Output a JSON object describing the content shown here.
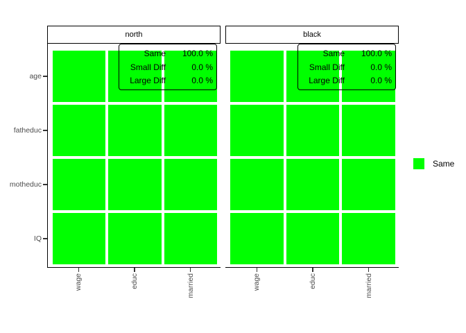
{
  "colors": {
    "tile": "#00FF00",
    "axis_text": "#4D4D4D",
    "line": "#000000"
  },
  "axes": {
    "x": [
      "wage",
      "educ",
      "married"
    ],
    "y": [
      "age",
      "fatheduc",
      "motheduc",
      "IQ"
    ]
  },
  "facets": [
    {
      "label": "north",
      "annotation": [
        {
          "label": "Same",
          "value": "100.0 %"
        },
        {
          "label": "Small Diff",
          "value": "0.0 %"
        },
        {
          "label": "Large Diff",
          "value": "0.0 %"
        }
      ]
    },
    {
      "label": "black",
      "annotation": [
        {
          "label": "Same",
          "value": "100.0 %"
        },
        {
          "label": "Small Diff",
          "value": "0.0 %"
        },
        {
          "label": "Large Diff",
          "value": "0.0 %"
        }
      ]
    }
  ],
  "legend": {
    "label": "Same",
    "color": "#00FF00"
  },
  "chart_data": {
    "type": "heatmap",
    "facets": [
      {
        "label": "north",
        "x": [
          "wage",
          "educ",
          "married"
        ],
        "y": [
          "age",
          "fatheduc",
          "motheduc",
          "IQ"
        ],
        "values": [
          [
            "Same",
            "Same",
            "Same"
          ],
          [
            "Same",
            "Same",
            "Same"
          ],
          [
            "Same",
            "Same",
            "Same"
          ],
          [
            "Same",
            "Same",
            "Same"
          ]
        ],
        "summary": {
          "Same": 100.0,
          "Small Diff": 0.0,
          "Large Diff": 0.0
        }
      },
      {
        "label": "black",
        "x": [
          "wage",
          "educ",
          "married"
        ],
        "y": [
          "age",
          "fatheduc",
          "motheduc",
          "IQ"
        ],
        "values": [
          [
            "Same",
            "Same",
            "Same"
          ],
          [
            "Same",
            "Same",
            "Same"
          ],
          [
            "Same",
            "Same",
            "Same"
          ],
          [
            "Same",
            "Same",
            "Same"
          ]
        ],
        "summary": {
          "Same": 100.0,
          "Small Diff": 0.0,
          "Large Diff": 0.0
        }
      }
    ],
    "categories_legend": [
      {
        "label": "Same",
        "color": "#00FF00"
      }
    ],
    "legend_position": "right",
    "grid": false,
    "title": ""
  }
}
